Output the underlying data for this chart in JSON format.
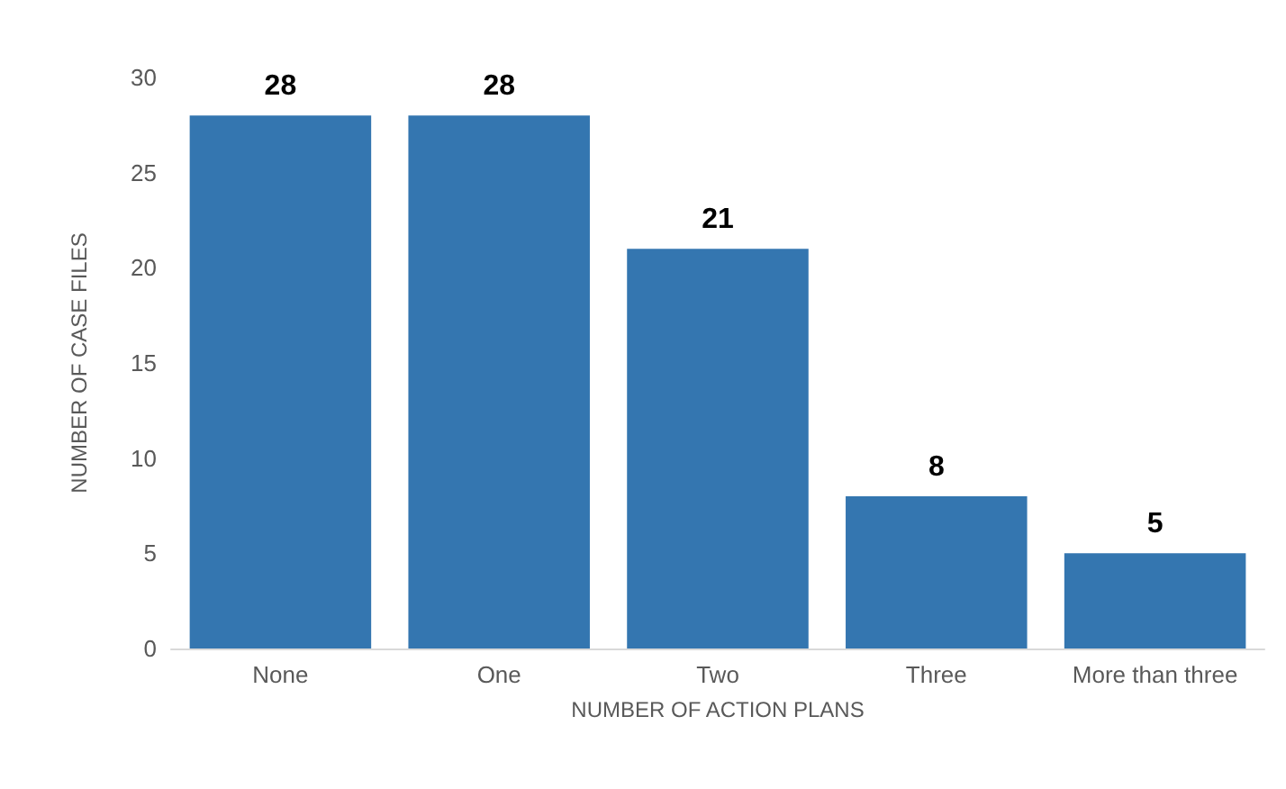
{
  "chart_data": {
    "type": "bar",
    "xlabel": "NUMBER OF ACTION PLANS",
    "ylabel": "NUMBER OF CASE FILES",
    "categories": [
      "None",
      "One",
      "Two",
      "Three",
      "More than three"
    ],
    "values": [
      28,
      28,
      21,
      8,
      5
    ],
    "color": "#3476b0",
    "ylim": [
      0,
      30
    ],
    "yticks": [
      0,
      5,
      10,
      15,
      20,
      25,
      30
    ],
    "grid": false,
    "data_labels": true
  }
}
